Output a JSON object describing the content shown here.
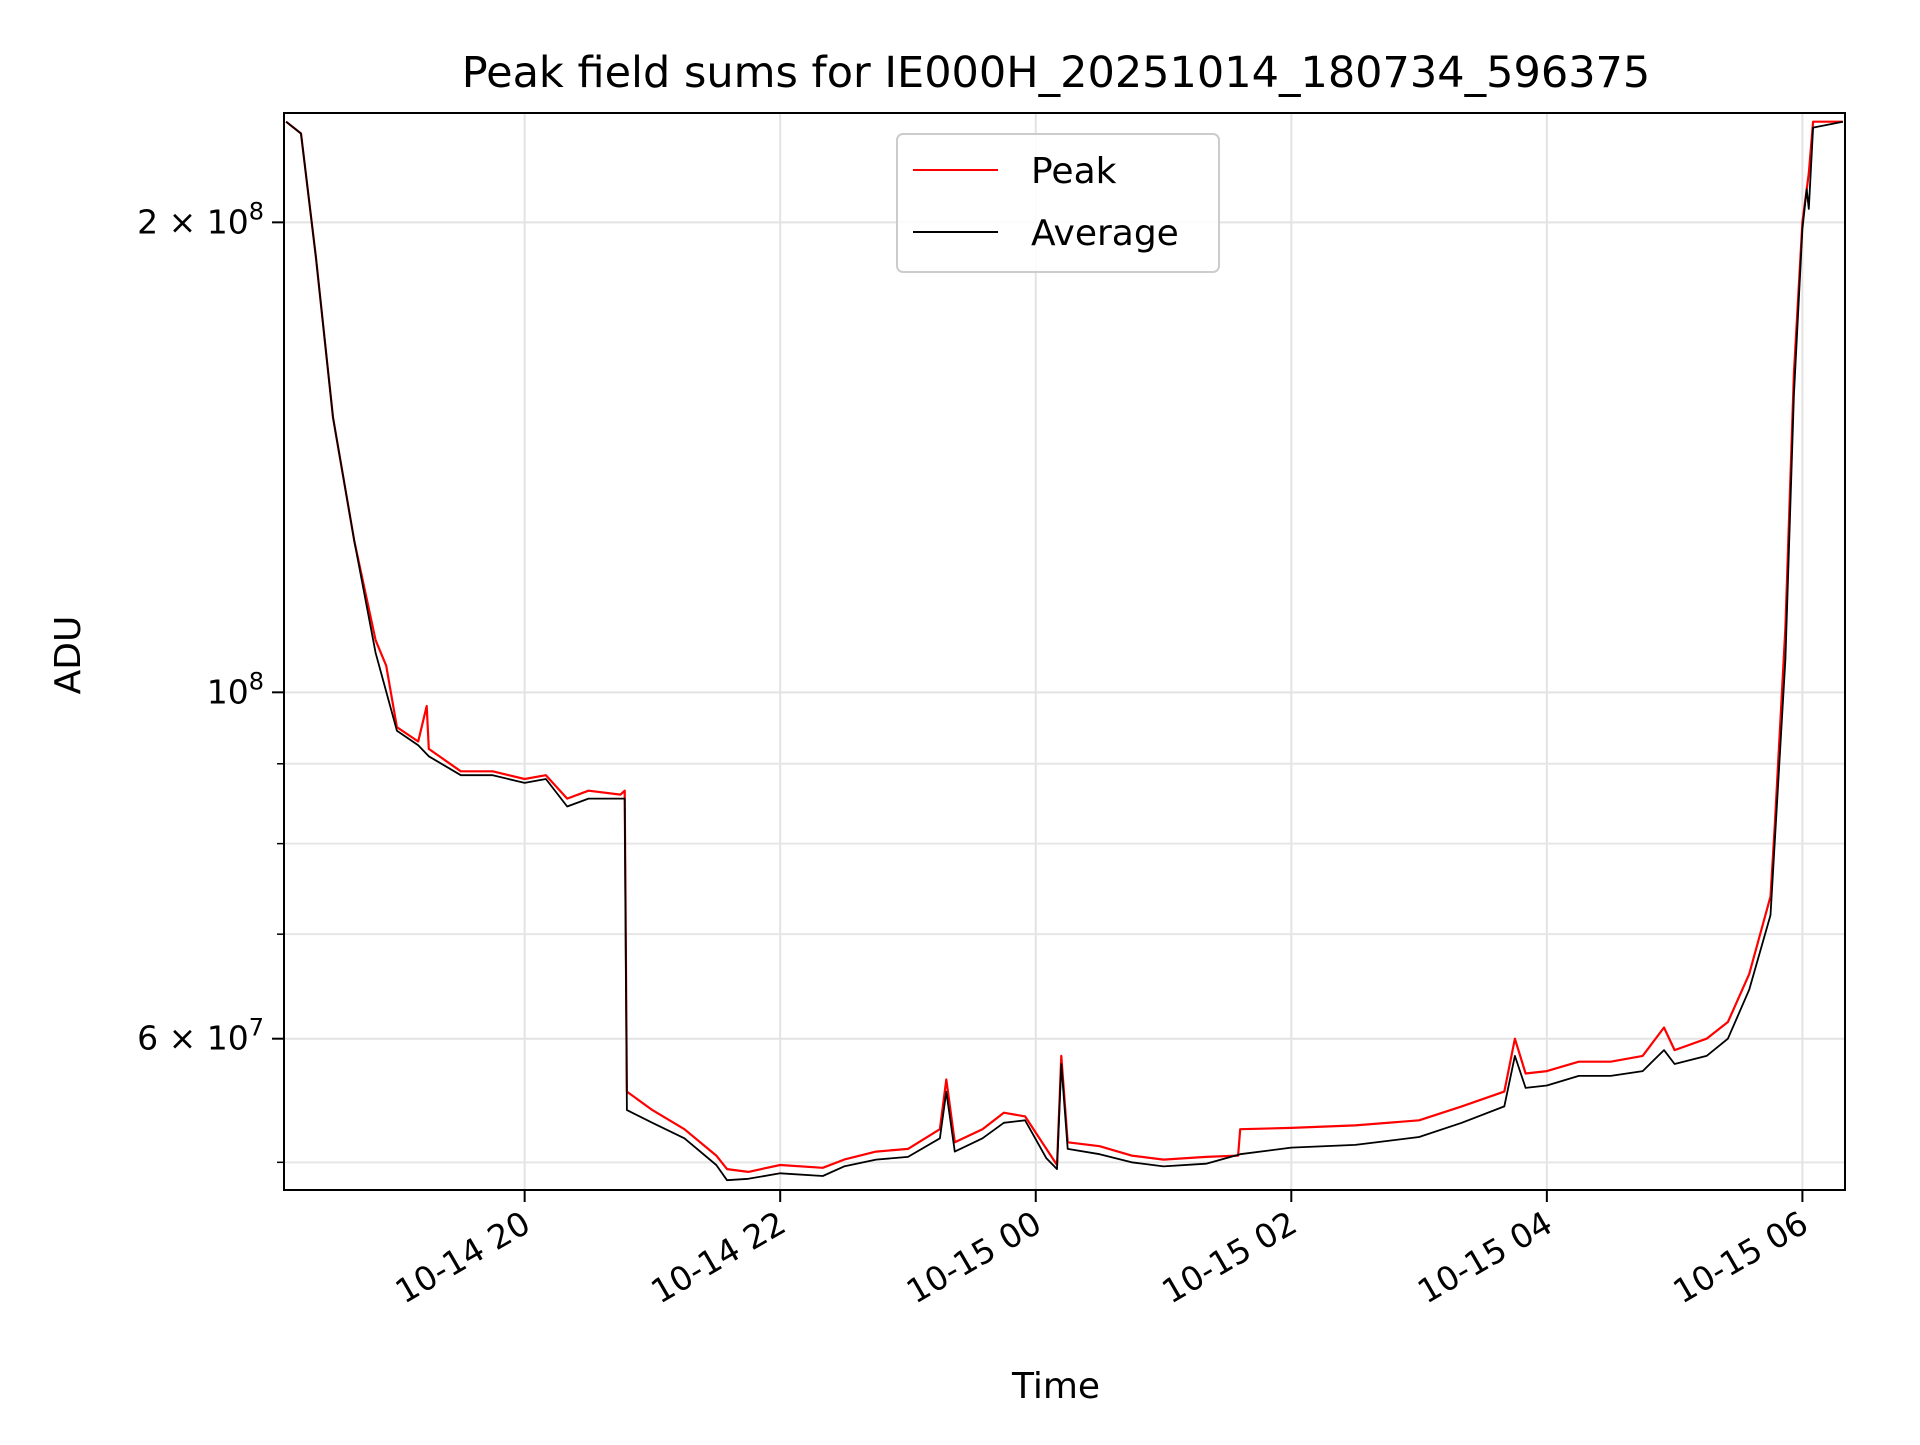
{
  "chart_data": {
    "type": "line",
    "title": "Peak field sums for IE000H_20251014_180734_596375",
    "xlabel": "Time",
    "ylabel": "ADU",
    "yscale": "log",
    "xlim": [
      "2025-10-14 18:07",
      "2025-10-15 06:20"
    ],
    "ylim": [
      48000000,
      235000000
    ],
    "grid": true,
    "legend_loc": "upper center",
    "x_ticks": [
      "10-14 20",
      "10-14 22",
      "10-15 00",
      "10-15 02",
      "10-15 04",
      "10-15 06"
    ],
    "y_ticks": [
      {
        "value": 200000000,
        "label": "2 × 10^8"
      },
      {
        "value": 100000000,
        "label": "10^8"
      },
      {
        "value": 60000000,
        "label": "6 × 10^7"
      }
    ],
    "series": [
      {
        "name": "Peak",
        "color": "#ff0000",
        "points": [
          [
            "2025-10-14 18:08",
            232000000
          ],
          [
            "2025-10-14 18:15",
            228000000
          ],
          [
            "2025-10-14 18:22",
            190000000
          ],
          [
            "2025-10-14 18:30",
            150000000
          ],
          [
            "2025-10-14 18:40",
            125000000
          ],
          [
            "2025-10-14 18:50",
            108000000
          ],
          [
            "2025-10-14 18:55",
            104000000
          ],
          [
            "2025-10-14 19:00",
            95000000
          ],
          [
            "2025-10-14 19:10",
            93000000
          ],
          [
            "2025-10-14 19:14",
            98000000
          ],
          [
            "2025-10-14 19:15",
            92000000
          ],
          [
            "2025-10-14 19:30",
            89000000
          ],
          [
            "2025-10-14 19:45",
            89000000
          ],
          [
            "2025-10-14 20:00",
            88000000
          ],
          [
            "2025-10-14 20:10",
            88500000
          ],
          [
            "2025-10-14 20:20",
            85500000
          ],
          [
            "2025-10-14 20:30",
            86500000
          ],
          [
            "2025-10-14 20:45",
            86000000
          ],
          [
            "2025-10-14 20:47",
            86500000
          ],
          [
            "2025-10-14 20:48",
            55500000
          ],
          [
            "2025-10-14 21:00",
            54000000
          ],
          [
            "2025-10-14 21:15",
            52500000
          ],
          [
            "2025-10-14 21:30",
            50500000
          ],
          [
            "2025-10-14 21:35",
            49500000
          ],
          [
            "2025-10-14 21:45",
            49300000
          ],
          [
            "2025-10-14 22:00",
            49800000
          ],
          [
            "2025-10-14 22:20",
            49600000
          ],
          [
            "2025-10-14 22:30",
            50200000
          ],
          [
            "2025-10-14 22:45",
            50800000
          ],
          [
            "2025-10-14 23:00",
            51000000
          ],
          [
            "2025-10-14 23:15",
            52500000
          ],
          [
            "2025-10-14 23:18",
            56500000
          ],
          [
            "2025-10-14 23:22",
            51500000
          ],
          [
            "2025-10-14 23:35",
            52500000
          ],
          [
            "2025-10-14 23:45",
            53800000
          ],
          [
            "2025-10-14 23:55",
            53500000
          ],
          [
            "2025-10-15 00:05",
            51000000
          ],
          [
            "2025-10-15 00:10",
            49800000
          ],
          [
            "2025-10-15 00:12",
            58500000
          ],
          [
            "2025-10-15 00:15",
            51500000
          ],
          [
            "2025-10-15 00:30",
            51200000
          ],
          [
            "2025-10-15 00:45",
            50500000
          ],
          [
            "2025-10-15 01:00",
            50200000
          ],
          [
            "2025-10-15 01:20",
            50400000
          ],
          [
            "2025-10-15 01:35",
            50500000
          ],
          [
            "2025-10-15 01:36",
            52500000
          ],
          [
            "2025-10-15 02:00",
            52600000
          ],
          [
            "2025-10-15 02:30",
            52800000
          ],
          [
            "2025-10-15 03:00",
            53200000
          ],
          [
            "2025-10-15 03:20",
            54300000
          ],
          [
            "2025-10-15 03:40",
            55500000
          ],
          [
            "2025-10-15 03:45",
            60000000
          ],
          [
            "2025-10-15 03:50",
            57000000
          ],
          [
            "2025-10-15 04:00",
            57200000
          ],
          [
            "2025-10-15 04:15",
            58000000
          ],
          [
            "2025-10-15 04:30",
            58000000
          ],
          [
            "2025-10-15 04:45",
            58500000
          ],
          [
            "2025-10-15 04:55",
            61000000
          ],
          [
            "2025-10-15 05:00",
            59000000
          ],
          [
            "2025-10-15 05:15",
            60000000
          ],
          [
            "2025-10-15 05:25",
            61500000
          ],
          [
            "2025-10-15 05:35",
            66000000
          ],
          [
            "2025-10-15 05:45",
            74000000
          ],
          [
            "2025-10-15 05:47",
            82000000
          ],
          [
            "2025-10-15 05:52",
            110000000
          ],
          [
            "2025-10-15 05:56",
            160000000
          ],
          [
            "2025-10-15 06:00",
            200000000
          ],
          [
            "2025-10-15 06:03",
            215000000
          ],
          [
            "2025-10-15 06:05",
            232000000
          ],
          [
            "2025-10-15 06:19",
            232000000
          ]
        ]
      },
      {
        "name": "Average",
        "color": "#000000",
        "points": [
          [
            "2025-10-14 18:08",
            232000000
          ],
          [
            "2025-10-14 18:15",
            228000000
          ],
          [
            "2025-10-14 18:22",
            190000000
          ],
          [
            "2025-10-14 18:30",
            150000000
          ],
          [
            "2025-10-14 18:40",
            125000000
          ],
          [
            "2025-10-14 18:50",
            106000000
          ],
          [
            "2025-10-14 19:00",
            94500000
          ],
          [
            "2025-10-14 19:10",
            92500000
          ],
          [
            "2025-10-14 19:15",
            91000000
          ],
          [
            "2025-10-14 19:30",
            88500000
          ],
          [
            "2025-10-14 19:45",
            88500000
          ],
          [
            "2025-10-14 20:00",
            87500000
          ],
          [
            "2025-10-14 20:10",
            88000000
          ],
          [
            "2025-10-14 20:20",
            84500000
          ],
          [
            "2025-10-14 20:30",
            85500000
          ],
          [
            "2025-10-14 20:47",
            85500000
          ],
          [
            "2025-10-14 20:48",
            54000000
          ],
          [
            "2025-10-14 21:00",
            53000000
          ],
          [
            "2025-10-14 21:15",
            51800000
          ],
          [
            "2025-10-14 21:30",
            49800000
          ],
          [
            "2025-10-14 21:35",
            48700000
          ],
          [
            "2025-10-14 21:45",
            48800000
          ],
          [
            "2025-10-14 22:00",
            49200000
          ],
          [
            "2025-10-14 22:20",
            49000000
          ],
          [
            "2025-10-14 22:30",
            49700000
          ],
          [
            "2025-10-14 22:45",
            50200000
          ],
          [
            "2025-10-14 23:00",
            50400000
          ],
          [
            "2025-10-14 23:15",
            51800000
          ],
          [
            "2025-10-14 23:18",
            55500000
          ],
          [
            "2025-10-14 23:22",
            50800000
          ],
          [
            "2025-10-14 23:35",
            51800000
          ],
          [
            "2025-10-14 23:45",
            53000000
          ],
          [
            "2025-10-14 23:55",
            53200000
          ],
          [
            "2025-10-15 00:05",
            50300000
          ],
          [
            "2025-10-15 00:10",
            49500000
          ],
          [
            "2025-10-15 00:12",
            57800000
          ],
          [
            "2025-10-15 00:15",
            51000000
          ],
          [
            "2025-10-15 00:30",
            50600000
          ],
          [
            "2025-10-15 00:45",
            50000000
          ],
          [
            "2025-10-15 01:00",
            49700000
          ],
          [
            "2025-10-15 01:20",
            49900000
          ],
          [
            "2025-10-15 01:36",
            50600000
          ],
          [
            "2025-10-15 02:00",
            51100000
          ],
          [
            "2025-10-15 02:30",
            51300000
          ],
          [
            "2025-10-15 03:00",
            51900000
          ],
          [
            "2025-10-15 03:20",
            53000000
          ],
          [
            "2025-10-15 03:40",
            54300000
          ],
          [
            "2025-10-15 03:45",
            58500000
          ],
          [
            "2025-10-15 03:50",
            55800000
          ],
          [
            "2025-10-15 04:00",
            56000000
          ],
          [
            "2025-10-15 04:15",
            56800000
          ],
          [
            "2025-10-15 04:30",
            56800000
          ],
          [
            "2025-10-15 04:45",
            57200000
          ],
          [
            "2025-10-15 04:55",
            59000000
          ],
          [
            "2025-10-15 05:00",
            57800000
          ],
          [
            "2025-10-15 05:15",
            58500000
          ],
          [
            "2025-10-15 05:25",
            60000000
          ],
          [
            "2025-10-15 05:35",
            64500000
          ],
          [
            "2025-10-15 05:45",
            72000000
          ],
          [
            "2025-10-15 05:52",
            105000000
          ],
          [
            "2025-10-15 05:56",
            155000000
          ],
          [
            "2025-10-15 06:00",
            198000000
          ],
          [
            "2025-10-15 06:02",
            210000000
          ],
          [
            "2025-10-15 06:03",
            204000000
          ],
          [
            "2025-10-15 06:05",
            230000000
          ],
          [
            "2025-10-15 06:19",
            232000000
          ]
        ]
      }
    ]
  }
}
